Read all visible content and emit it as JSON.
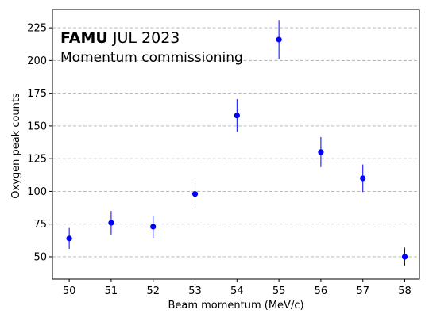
{
  "chart_data": {
    "type": "scatter",
    "title": "",
    "xlabel": "Beam momentum (MeV/c)",
    "ylabel": "Oxygen peak counts",
    "xlim": [
      49.6,
      58.35
    ],
    "ylim": [
      33,
      239
    ],
    "x_ticks": [
      50,
      51,
      52,
      53,
      54,
      55,
      56,
      57,
      58
    ],
    "y_ticks": [
      50,
      75,
      100,
      125,
      150,
      175,
      200,
      225
    ],
    "grid": "horizontal dashed",
    "annotation": {
      "experiment": "FAMU",
      "date": "JUL 2023",
      "subtitle": "Momentum commissioning"
    },
    "series": [
      {
        "color": "#0000ff",
        "points": [
          {
            "x": 50,
            "y": 64,
            "err": 8
          },
          {
            "x": 51,
            "y": 76,
            "err": 9
          },
          {
            "x": 52,
            "y": 73,
            "err": 8.5
          },
          {
            "x": 53,
            "y": 98,
            "err": 10
          },
          {
            "x": 54,
            "y": 158,
            "err": 12.5
          },
          {
            "x": 55,
            "y": 216,
            "err": 15
          },
          {
            "x": 56,
            "y": 130,
            "err": 11.5
          },
          {
            "x": 57,
            "y": 110,
            "err": 10.5
          },
          {
            "x": 58,
            "y": 50,
            "err": 7
          }
        ]
      }
    ]
  }
}
